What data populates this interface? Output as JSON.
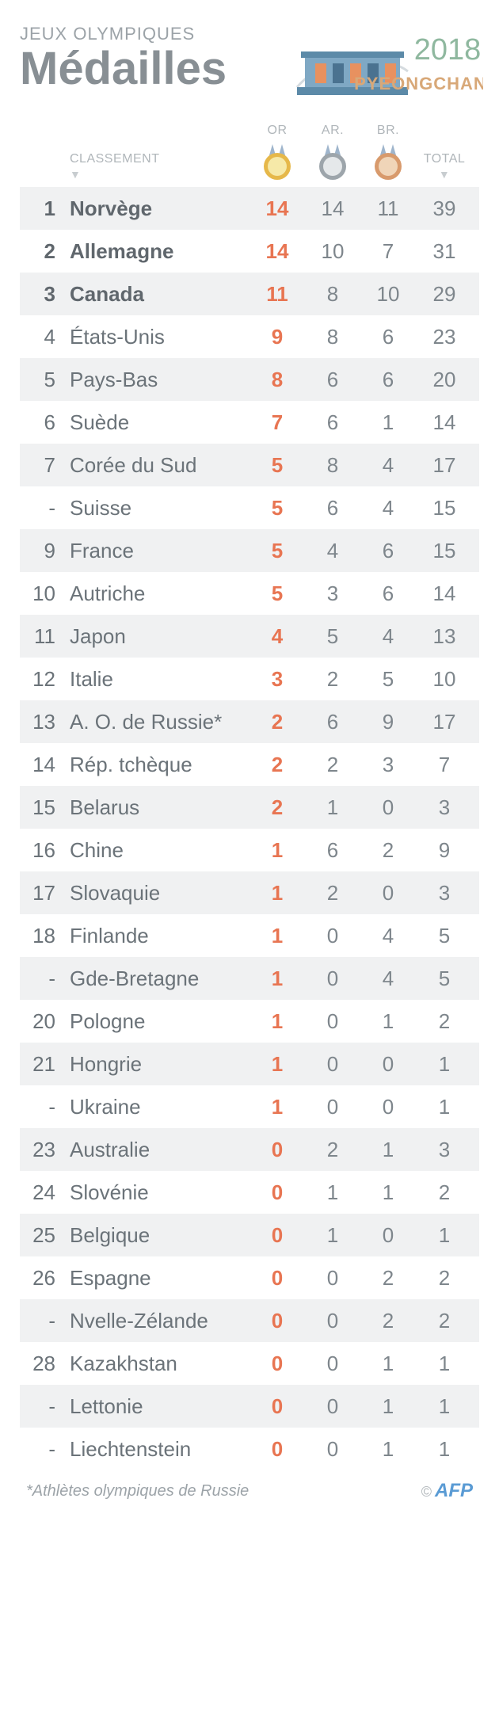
{
  "header": {
    "eyebrow": "JEUX OLYMPIQUES",
    "title": "Médailles",
    "logo_year": "2018",
    "logo_city": "PYEONGCHANG"
  },
  "columns": {
    "rank_label": "CLASSEMENT",
    "gold_label": "OR",
    "silver_label": "AR.",
    "bronze_label": "BR.",
    "total_label": "TOTAL"
  },
  "medal_colors": {
    "gold_rim": "#e6b84a",
    "gold_fill": "#f6e9a8",
    "silver_rim": "#9da5ab",
    "silver_fill": "#e5e8ea",
    "bronze_rim": "#d89a6c",
    "bronze_fill": "#f0d5b8",
    "ribbon": "#9fb5cc"
  },
  "table_colors": {
    "row_odd": "#f0f1f2",
    "row_even": "#ffffff",
    "text_main": "#6b7379",
    "text_bold": "#60676d",
    "gold_text": "#e87552",
    "header_text": "#b0b6ba"
  },
  "rows": [
    {
      "rank": "1",
      "country": "Norvège",
      "gold": "14",
      "silver": "14",
      "bronze": "11",
      "total": "39",
      "bold": true
    },
    {
      "rank": "2",
      "country": "Allemagne",
      "gold": "14",
      "silver": "10",
      "bronze": "7",
      "total": "31",
      "bold": true
    },
    {
      "rank": "3",
      "country": "Canada",
      "gold": "11",
      "silver": "8",
      "bronze": "10",
      "total": "29",
      "bold": true
    },
    {
      "rank": "4",
      "country": "États-Unis",
      "gold": "9",
      "silver": "8",
      "bronze": "6",
      "total": "23",
      "bold": false
    },
    {
      "rank": "5",
      "country": "Pays-Bas",
      "gold": "8",
      "silver": "6",
      "bronze": "6",
      "total": "20",
      "bold": false
    },
    {
      "rank": "6",
      "country": "Suède",
      "gold": "7",
      "silver": "6",
      "bronze": "1",
      "total": "14",
      "bold": false
    },
    {
      "rank": "7",
      "country": "Corée du Sud",
      "gold": "5",
      "silver": "8",
      "bronze": "4",
      "total": "17",
      "bold": false
    },
    {
      "rank": "-",
      "country": "Suisse",
      "gold": "5",
      "silver": "6",
      "bronze": "4",
      "total": "15",
      "bold": false
    },
    {
      "rank": "9",
      "country": "France",
      "gold": "5",
      "silver": "4",
      "bronze": "6",
      "total": "15",
      "bold": false
    },
    {
      "rank": "10",
      "country": "Autriche",
      "gold": "5",
      "silver": "3",
      "bronze": "6",
      "total": "14",
      "bold": false
    },
    {
      "rank": "11",
      "country": "Japon",
      "gold": "4",
      "silver": "5",
      "bronze": "4",
      "total": "13",
      "bold": false
    },
    {
      "rank": "12",
      "country": "Italie",
      "gold": "3",
      "silver": "2",
      "bronze": "5",
      "total": "10",
      "bold": false
    },
    {
      "rank": "13",
      "country": "A. O. de Russie*",
      "gold": "2",
      "silver": "6",
      "bronze": "9",
      "total": "17",
      "bold": false
    },
    {
      "rank": "14",
      "country": "Rép. tchèque",
      "gold": "2",
      "silver": "2",
      "bronze": "3",
      "total": "7",
      "bold": false
    },
    {
      "rank": "15",
      "country": "Belarus",
      "gold": "2",
      "silver": "1",
      "bronze": "0",
      "total": "3",
      "bold": false
    },
    {
      "rank": "16",
      "country": "Chine",
      "gold": "1",
      "silver": "6",
      "bronze": "2",
      "total": "9",
      "bold": false
    },
    {
      "rank": "17",
      "country": "Slovaquie",
      "gold": "1",
      "silver": "2",
      "bronze": "0",
      "total": "3",
      "bold": false
    },
    {
      "rank": "18",
      "country": "Finlande",
      "gold": "1",
      "silver": "0",
      "bronze": "4",
      "total": "5",
      "bold": false
    },
    {
      "rank": "-",
      "country": "Gde-Bretagne",
      "gold": "1",
      "silver": "0",
      "bronze": "4",
      "total": "5",
      "bold": false
    },
    {
      "rank": "20",
      "country": "Pologne",
      "gold": "1",
      "silver": "0",
      "bronze": "1",
      "total": "2",
      "bold": false
    },
    {
      "rank": "21",
      "country": "Hongrie",
      "gold": "1",
      "silver": "0",
      "bronze": "0",
      "total": "1",
      "bold": false
    },
    {
      "rank": "-",
      "country": "Ukraine",
      "gold": "1",
      "silver": "0",
      "bronze": "0",
      "total": "1",
      "bold": false
    },
    {
      "rank": "23",
      "country": "Australie",
      "gold": "0",
      "silver": "2",
      "bronze": "1",
      "total": "3",
      "bold": false
    },
    {
      "rank": "24",
      "country": "Slovénie",
      "gold": "0",
      "silver": "1",
      "bronze": "1",
      "total": "2",
      "bold": false
    },
    {
      "rank": "25",
      "country": "Belgique",
      "gold": "0",
      "silver": "1",
      "bronze": "0",
      "total": "1",
      "bold": false
    },
    {
      "rank": "26",
      "country": "Espagne",
      "gold": "0",
      "silver": "0",
      "bronze": "2",
      "total": "2",
      "bold": false
    },
    {
      "rank": "-",
      "country": "Nvelle-Zélande",
      "gold": "0",
      "silver": "0",
      "bronze": "2",
      "total": "2",
      "bold": false
    },
    {
      "rank": "28",
      "country": "Kazakhstan",
      "gold": "0",
      "silver": "0",
      "bronze": "1",
      "total": "1",
      "bold": false
    },
    {
      "rank": "-",
      "country": "Lettonie",
      "gold": "0",
      "silver": "0",
      "bronze": "1",
      "total": "1",
      "bold": false
    },
    {
      "rank": "-",
      "country": "Liechtenstein",
      "gold": "0",
      "silver": "0",
      "bronze": "1",
      "total": "1",
      "bold": false
    }
  ],
  "footer": {
    "footnote": "*Athlètes olympiques de Russie",
    "credit_symbol": "©",
    "credit_text": "AFP"
  }
}
